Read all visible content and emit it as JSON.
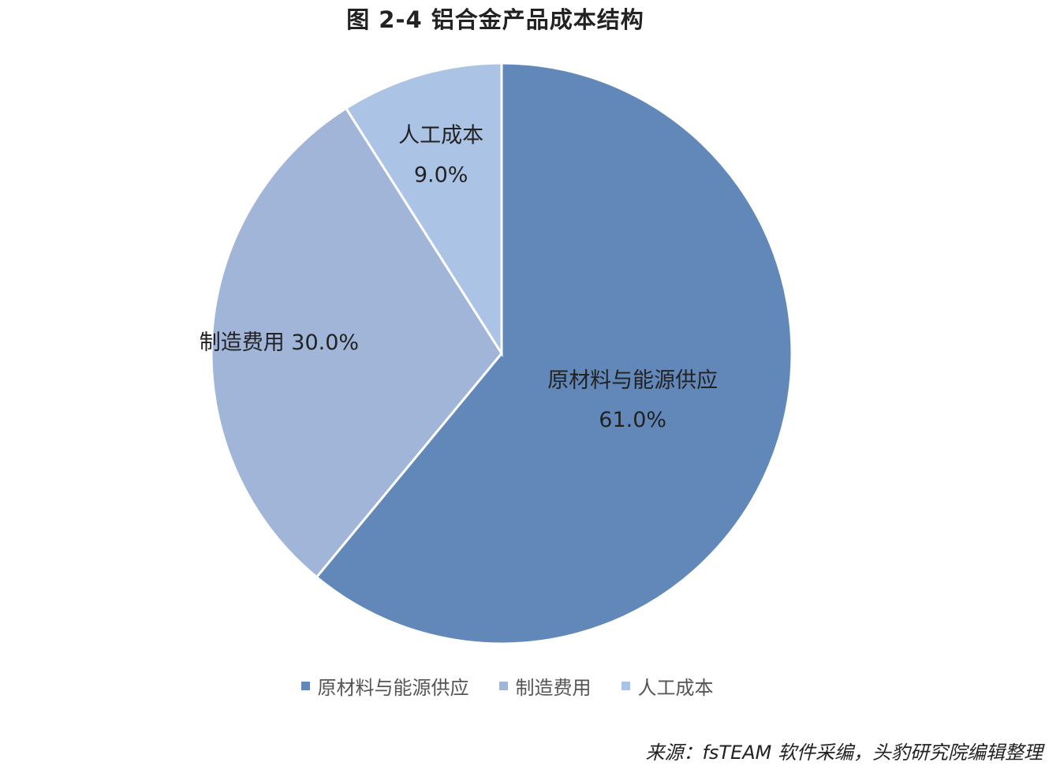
{
  "chart_data": {
    "type": "pie",
    "title": "图 2-4 铝合金产品成本结构",
    "slices": [
      {
        "name": "原材料与能源供应",
        "value": 61.0,
        "label": "61.0%",
        "color": "#6288BA"
      },
      {
        "name": "制造费用",
        "value": 30.0,
        "label": "30.0%",
        "color": "#A0B5D8"
      },
      {
        "name": "人工成本",
        "value": 9.0,
        "label": "9.0%",
        "color": "#ABC3E4"
      }
    ],
    "legend": {
      "placement": "bottom",
      "entries": [
        "原材料与能源供应",
        "制造费用",
        "人工成本"
      ]
    },
    "source": "来源：fsTEAM 软件采编，头豹研究院编辑整理"
  }
}
